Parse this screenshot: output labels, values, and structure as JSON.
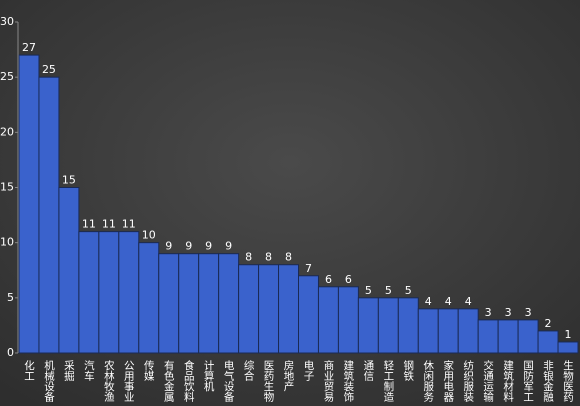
{
  "chart_data": {
    "type": "bar",
    "categories": [
      "化工",
      "机械设备",
      "采掘",
      "汽车",
      "农林牧渔",
      "公用事业",
      "传媒",
      "有色金属",
      "食品饮料",
      "计算机",
      "电气设备",
      "综合",
      "医药生物",
      "房地产",
      "电子",
      "商业贸易",
      "建筑装饰",
      "通信",
      "轻工制造",
      "钢铁",
      "休闲服务",
      "家用电器",
      "纺织服装",
      "交通运输",
      "建筑材料",
      "国防军工",
      "非银金融",
      "生物医药"
    ],
    "values": [
      27,
      25,
      15,
      11,
      11,
      11,
      10,
      9,
      9,
      9,
      9,
      8,
      8,
      8,
      7,
      6,
      6,
      5,
      5,
      5,
      4,
      4,
      4,
      3,
      3,
      3,
      2,
      1
    ],
    "color": "#3a62cc",
    "ylim": [
      0,
      30
    ],
    "yticks": [
      0,
      5,
      10,
      15,
      20,
      25,
      30
    ],
    "grid": false
  }
}
